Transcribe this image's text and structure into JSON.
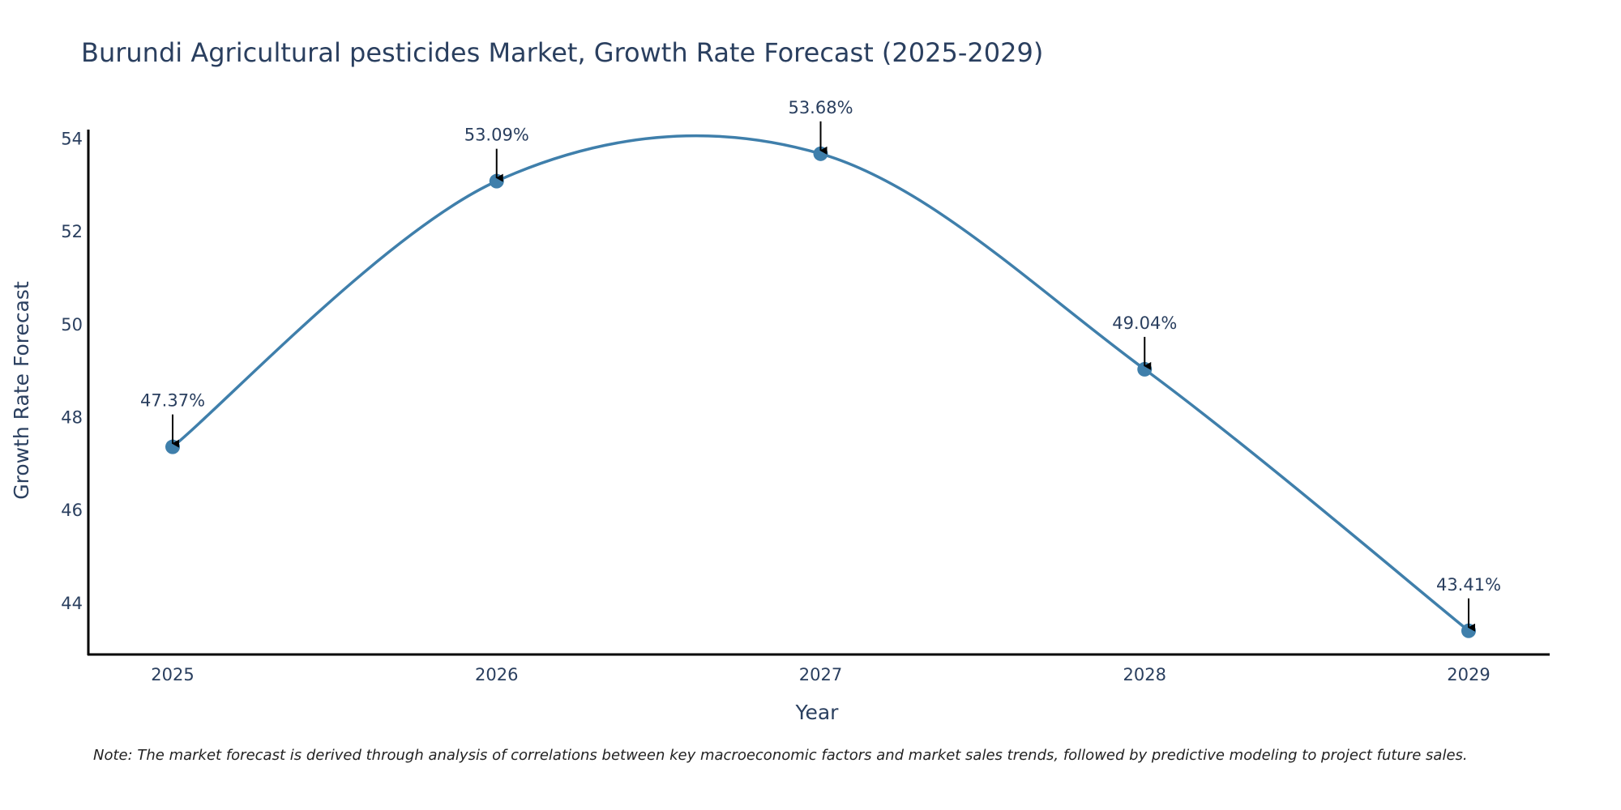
{
  "chart_data": {
    "type": "line",
    "title": "Burundi Agricultural pesticides Market, Growth Rate Forecast (2025-2029)",
    "xlabel": "Year",
    "ylabel": "Growth Rate Forecast",
    "categories": [
      "2025",
      "2026",
      "2027",
      "2028",
      "2029"
    ],
    "series": [
      {
        "name": "Growth Rate Forecast",
        "values": [
          47.37,
          53.09,
          53.68,
          49.04,
          43.41
        ],
        "labels": [
          "47.37%",
          "53.09%",
          "53.68%",
          "49.04%",
          "43.41%"
        ]
      }
    ],
    "yticks": [
      44,
      46,
      48,
      50,
      52,
      54
    ],
    "ylim": [
      42.9,
      54.2
    ],
    "line_color": "#3f7fab",
    "marker_color": "#3f7fab",
    "arrow_color": "#000000",
    "grid": false,
    "line_shape": "spline",
    "note": "Note: The market forecast is derived through analysis of correlations between key macroeconomic factors and market sales trends, followed by predictive modeling to project future sales."
  }
}
